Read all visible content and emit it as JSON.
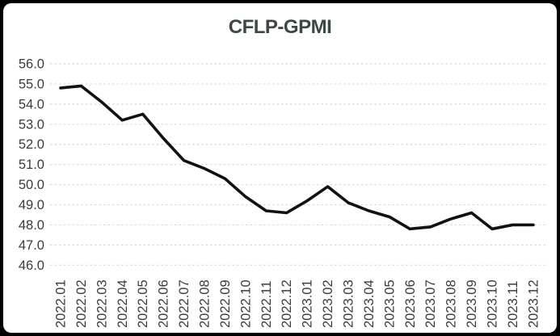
{
  "chart_data": {
    "type": "line",
    "title": "CFLP-GPMI",
    "series_name": "CFLP-GPMI",
    "categories": [
      "2022.01",
      "2022.02",
      "2022.03",
      "2022.04",
      "2022.05",
      "2022.06",
      "2022.07",
      "2022.08",
      "2022.09",
      "2022.10",
      "2022.11",
      "2022.12",
      "2023.01",
      "2023.02",
      "2023.03",
      "2023.04",
      "2023.05",
      "2023.06",
      "2023.07",
      "2023.08",
      "2023.09",
      "2023.10",
      "2023.11",
      "2023.12"
    ],
    "values": [
      54.8,
      54.9,
      54.1,
      53.2,
      53.5,
      52.3,
      51.2,
      50.8,
      50.3,
      49.4,
      48.7,
      48.6,
      49.2,
      49.9,
      49.1,
      48.7,
      48.4,
      47.8,
      47.9,
      48.3,
      48.6,
      47.8,
      48.0,
      48.0
    ],
    "xlabel": "",
    "ylabel": "",
    "ylim": [
      46.0,
      56.0
    ],
    "ytick_step": 1.0,
    "ytick_labels": [
      "56.0",
      "55.0",
      "54.0",
      "53.0",
      "52.0",
      "51.0",
      "50.0",
      "49.0",
      "48.0",
      "47.0",
      "46.0"
    ],
    "grid": "horizontal-dashed",
    "legend": "none",
    "markers": "none"
  },
  "style": {
    "frame_background": "#000000",
    "panel_background": "#ffffff",
    "title_color": "#3d4748",
    "tick_label_color": "#3c3c3c",
    "gridline_color": "#ccdedd",
    "line_color": "#111111"
  }
}
